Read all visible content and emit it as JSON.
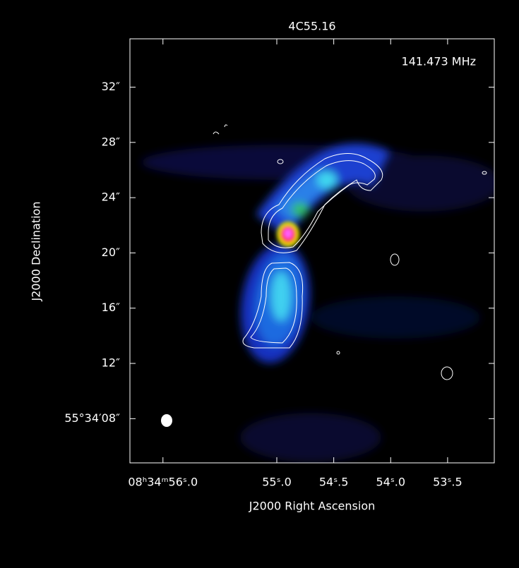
{
  "chart_data": {
    "type": "image",
    "title": "4C55.16",
    "annotation": "141.473 MHz",
    "x_label": "J2000 Right Ascension",
    "y_label": "J2000 Declination",
    "xlim": [
      56.29,
      53.09
    ],
    "ylim": [
      4.8,
      35.5
    ],
    "xticks": [
      {
        "value": 56.0,
        "label": "08ʰ34ᵐ56ˢ.0"
      },
      {
        "value": 55.0,
        "label": "55ˢ.0"
      },
      {
        "value": 54.5,
        "label": "54ˢ.5"
      },
      {
        "value": 54.0,
        "label": "54ˢ.0"
      },
      {
        "value": 53.5,
        "label": "53ˢ.5"
      }
    ],
    "yticks": [
      {
        "value": 8,
        "label": "55°34′08″"
      },
      {
        "value": 12,
        "label": "12″"
      },
      {
        "value": 16,
        "label": "16″"
      },
      {
        "value": 20,
        "label": "20″"
      },
      {
        "value": 24,
        "label": "24″"
      },
      {
        "value": 28,
        "label": "28″"
      },
      {
        "value": 32,
        "label": "32″"
      }
    ],
    "color": "#ffffff"
  }
}
